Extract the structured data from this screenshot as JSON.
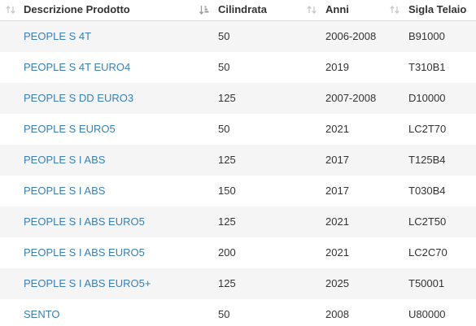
{
  "columns": [
    {
      "key": "descrizione",
      "label": "Descrizione Prodotto",
      "sort": "none"
    },
    {
      "key": "cilindrata",
      "label": "Cilindrata",
      "sort": "ascending"
    },
    {
      "key": "anni",
      "label": "Anni",
      "sort": "none"
    },
    {
      "key": "sigla",
      "label": "Sigla Telaio",
      "sort": "none"
    }
  ],
  "rows": [
    {
      "descrizione": "PEOPLE S 4T",
      "cilindrata": "50",
      "anni": "2006-2008",
      "sigla": "B91000"
    },
    {
      "descrizione": "PEOPLE S 4T EURO4",
      "cilindrata": "50",
      "anni": "2019",
      "sigla": "T310B1"
    },
    {
      "descrizione": "PEOPLE S DD EURO3",
      "cilindrata": "125",
      "anni": "2007-2008",
      "sigla": "D10000"
    },
    {
      "descrizione": "PEOPLE S EURO5",
      "cilindrata": "50",
      "anni": "2021",
      "sigla": "LC2T70"
    },
    {
      "descrizione": "PEOPLE S I ABS",
      "cilindrata": "125",
      "anni": "2017",
      "sigla": "T125B4"
    },
    {
      "descrizione": "PEOPLE S I ABS",
      "cilindrata": "150",
      "anni": "2017",
      "sigla": "T030B4"
    },
    {
      "descrizione": "PEOPLE S I ABS EURO5",
      "cilindrata": "125",
      "anni": "2021",
      "sigla": "LC2T50"
    },
    {
      "descrizione": "PEOPLE S I ABS EURO5",
      "cilindrata": "200",
      "anni": "2021",
      "sigla": "LC2C70"
    },
    {
      "descrizione": "PEOPLE S I ABS EURO5+",
      "cilindrata": "125",
      "anni": "2025",
      "sigla": "T50001"
    },
    {
      "descrizione": "SENTO",
      "cilindrata": "50",
      "anni": "2008",
      "sigla": "U80000"
    }
  ],
  "colors": {
    "link": "#3a7fb6",
    "text": "#333333",
    "row_stripe": "#f5f5f5",
    "sort_icon": "#c8c8c8",
    "sort_icon_active": "#9a9a9a"
  },
  "icons": {
    "sort_default": "sort-both-icon",
    "sort_active": "sort-ascending-icon"
  }
}
